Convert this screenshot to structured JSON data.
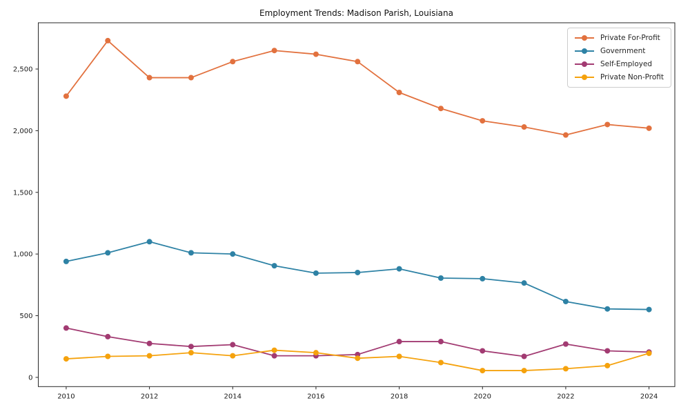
{
  "chart_data": {
    "type": "line",
    "title": "Employment Trends: Madison Parish, Louisiana",
    "xlabel": "",
    "ylabel": "",
    "x": [
      2010,
      2011,
      2012,
      2013,
      2014,
      2015,
      2016,
      2017,
      2018,
      2019,
      2020,
      2021,
      2022,
      2023,
      2024
    ],
    "series": [
      {
        "name": "Private For-Profit",
        "color": "#e2713e",
        "values": [
          2280,
          2730,
          2430,
          2430,
          2560,
          2650,
          2620,
          2560,
          2310,
          2180,
          2080,
          2030,
          1965,
          2050,
          2020
        ]
      },
      {
        "name": "Government",
        "color": "#2e82a5",
        "values": [
          940,
          1010,
          1100,
          1010,
          1000,
          905,
          845,
          850,
          880,
          805,
          800,
          765,
          615,
          555,
          550
        ]
      },
      {
        "name": "Self-Employed",
        "color": "#a23b72",
        "values": [
          400,
          330,
          275,
          250,
          265,
          175,
          175,
          185,
          290,
          290,
          215,
          170,
          270,
          215,
          205
        ]
      },
      {
        "name": "Private Non-Profit",
        "color": "#f5a20d",
        "values": [
          150,
          170,
          175,
          200,
          175,
          220,
          200,
          155,
          170,
          120,
          55,
          55,
          70,
          95,
          195
        ]
      }
    ],
    "xticks": [
      2010,
      2012,
      2014,
      2016,
      2018,
      2020,
      2022,
      2024
    ],
    "yticks": [
      0,
      500,
      1000,
      1500,
      2000,
      2500
    ],
    "ytick_labels": [
      "0",
      "500",
      "1,000",
      "1,500",
      "2,000",
      "2,500"
    ],
    "xlim": [
      2009.33,
      2024.62
    ],
    "ylim": [
      -75,
      2875
    ],
    "grid": false,
    "legend_position": "upper right",
    "marker": "circle"
  }
}
